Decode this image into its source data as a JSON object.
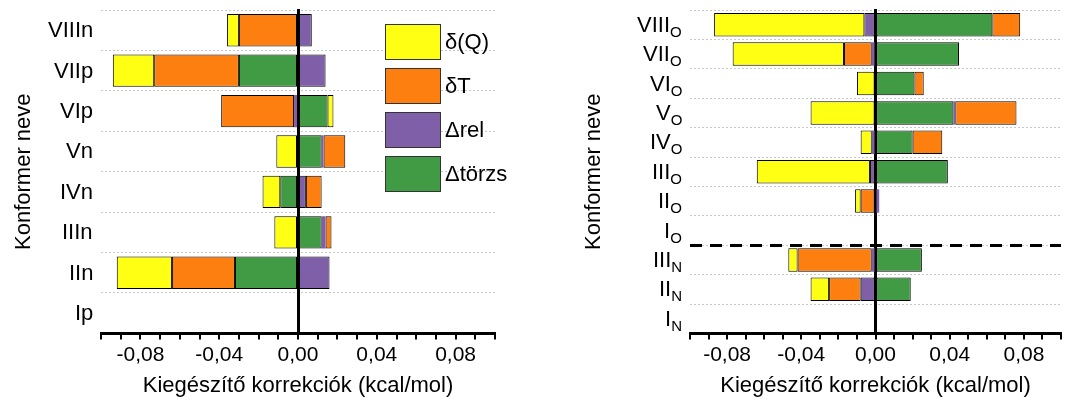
{
  "chart_data": [
    {
      "type": "bar",
      "orientation": "horizontal",
      "stacked": true,
      "categories": [
        "VIIIn",
        "VIIp",
        "VIp",
        "Vn",
        "IVn",
        "IIIn",
        "IIn",
        "Ip"
      ],
      "series": [
        {
          "name": "Δtörzs",
          "color": "#419a44",
          "values": [
            0,
            -0.03,
            0.015,
            0.012,
            -0.009,
            0.012,
            -0.032,
            0
          ]
        },
        {
          "name": "Δrel",
          "color": "#7f5fa8",
          "values": [
            0.007,
            0.014,
            -0.002,
            0.001,
            0.004,
            0.002,
            0.016,
            0
          ]
        },
        {
          "name": "δT",
          "color": "#fc7f0f",
          "values": [
            -0.03,
            -0.043,
            -0.037,
            0.011,
            0.008,
            0.003,
            -0.032,
            0
          ]
        },
        {
          "name": "δ(Q)",
          "color": "#ffff14",
          "values": [
            -0.006,
            -0.021,
            0.003,
            -0.011,
            -0.009,
            -0.012,
            -0.028,
            0
          ]
        }
      ],
      "xlim": [
        -0.1,
        0.1
      ],
      "xticks": [
        {
          "value": -0.1,
          "label": null
        },
        {
          "value": -0.09,
          "label": null
        },
        {
          "value": -0.08,
          "label": "-0,08"
        },
        {
          "value": -0.07,
          "label": null
        },
        {
          "value": -0.06,
          "label": null
        },
        {
          "value": -0.05,
          "label": null
        },
        {
          "value": -0.04,
          "label": "-0,04"
        },
        {
          "value": -0.03,
          "label": null
        },
        {
          "value": -0.02,
          "label": null
        },
        {
          "value": -0.01,
          "label": null
        },
        {
          "value": 0,
          "label": "0,00"
        },
        {
          "value": 0.01,
          "label": null
        },
        {
          "value": 0.02,
          "label": null
        },
        {
          "value": 0.03,
          "label": null
        },
        {
          "value": 0.04,
          "label": "0,04"
        },
        {
          "value": 0.05,
          "label": null
        },
        {
          "value": 0.06,
          "label": null
        },
        {
          "value": 0.07,
          "label": null
        },
        {
          "value": 0.08,
          "label": "0,08"
        },
        {
          "value": 0.09,
          "label": null
        },
        {
          "value": 0.1,
          "label": null
        }
      ],
      "xlabel": "Kiegészítő korrekciók (kcal/mol)",
      "ylabel": "Konformer neve",
      "grid": "y",
      "legend": "top right"
    },
    {
      "type": "bar",
      "orientation": "horizontal",
      "stacked": true,
      "categories": [
        "VIII$_{O}$",
        "VII$_{O}$",
        "VI$_{O}$",
        "V$_{O}$",
        "IV$_{O}$",
        "III$_{O}$",
        "II$_{O}$",
        "I$_{O}$",
        "III$_{N}$",
        "II$_{N}$",
        "I$_{N}$"
      ],
      "series": [
        {
          "color": "#419a44",
          "values": [
            0.063,
            0.045,
            0.021,
            0.042,
            0.02,
            0.039,
            0,
            0,
            0.025,
            0.019,
            0
          ]
        },
        {
          "color": "#7f5fa8",
          "values": [
            -0.006,
            -0.002,
            0,
            0.001,
            -0.002,
            -0.003,
            0.002,
            0,
            -0.002,
            -0.008,
            0
          ]
        },
        {
          "color": "#fc7f0f",
          "values": [
            0.015,
            -0.015,
            0.005,
            0.033,
            0.016,
            0,
            -0.008,
            0,
            -0.04,
            -0.017,
            0
          ]
        },
        {
          "color": "#ffff14",
          "values": [
            -0.081,
            -0.06,
            -0.01,
            -0.035,
            -0.006,
            -0.061,
            -0.003,
            0,
            -0.005,
            -0.01,
            0
          ]
        }
      ],
      "xlim": [
        -0.1,
        0.1
      ],
      "xticks": [
        {
          "value": -0.1,
          "label": null
        },
        {
          "value": -0.09,
          "label": null
        },
        {
          "value": -0.08,
          "label": "-0,08"
        },
        {
          "value": -0.07,
          "label": null
        },
        {
          "value": -0.06,
          "label": null
        },
        {
          "value": -0.05,
          "label": null
        },
        {
          "value": -0.04,
          "label": "-0,04"
        },
        {
          "value": -0.03,
          "label": null
        },
        {
          "value": -0.02,
          "label": null
        },
        {
          "value": -0.01,
          "label": null
        },
        {
          "value": 0,
          "label": "0,00"
        },
        {
          "value": 0.01,
          "label": null
        },
        {
          "value": 0.02,
          "label": null
        },
        {
          "value": 0.03,
          "label": null
        },
        {
          "value": 0.04,
          "label": "0,04"
        },
        {
          "value": 0.05,
          "label": null
        },
        {
          "value": 0.06,
          "label": null
        },
        {
          "value": 0.07,
          "label": null
        },
        {
          "value": 0.08,
          "label": "0,08"
        },
        {
          "value": 0.09,
          "label": null
        },
        {
          "value": 0.1,
          "label": null
        }
      ],
      "xlabel": "Kiegészítő korrekciók (kcal/mol)",
      "ylabel": "Konformer neve",
      "grid": "y"
    }
  ]
}
